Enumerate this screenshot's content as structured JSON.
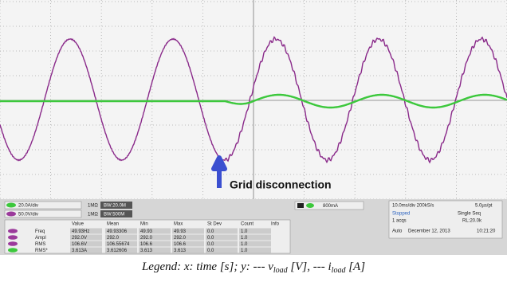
{
  "annotation": "Grid disconnection",
  "channels": [
    {
      "scale": "20.0A/div",
      "impedance": "1MΩ",
      "bandwidth": "BW:20.0M"
    },
    {
      "scale": "50.0V/div",
      "impedance": "1MΩ",
      "bandwidth": "BW:500M"
    }
  ],
  "trigger": "800mA",
  "acquisition": {
    "horizontal": "10.0ms/div 200kS/s",
    "resolution": "5.0µs/pt",
    "state": "Stopped",
    "mode": "Single Seq",
    "acquisitions": "1 acqs",
    "record_length": "RL:20.0k",
    "trigger_mode": "Auto",
    "date": "December 12, 2013",
    "time": "10:21:20"
  },
  "measurements": {
    "header": [
      "Value",
      "Mean",
      "Min",
      "Max",
      "St Dev",
      "Count",
      "Info"
    ],
    "rows": [
      [
        "Freq",
        "49.93Hz",
        "49.93306",
        "49.93",
        "49.93",
        "0.0",
        "1.0"
      ],
      [
        "Ampl",
        "292.0V",
        "292.0",
        "292.0",
        "292.0",
        "0.0",
        "1.0"
      ],
      [
        "RMS",
        "106.6V",
        "106.55674",
        "106.6",
        "106.6",
        "0.0",
        "1.0"
      ],
      [
        "RMS*",
        "3.613A",
        "3.612606",
        "3.613",
        "3.613",
        "0.0",
        "1.0"
      ]
    ]
  },
  "caption": {
    "prefix": "Legend: x: time [s]; y: --- v",
    "v_sub": "load",
    "middle": " [V], --- i",
    "i_sub": "load",
    "suffix": " [A]"
  }
}
